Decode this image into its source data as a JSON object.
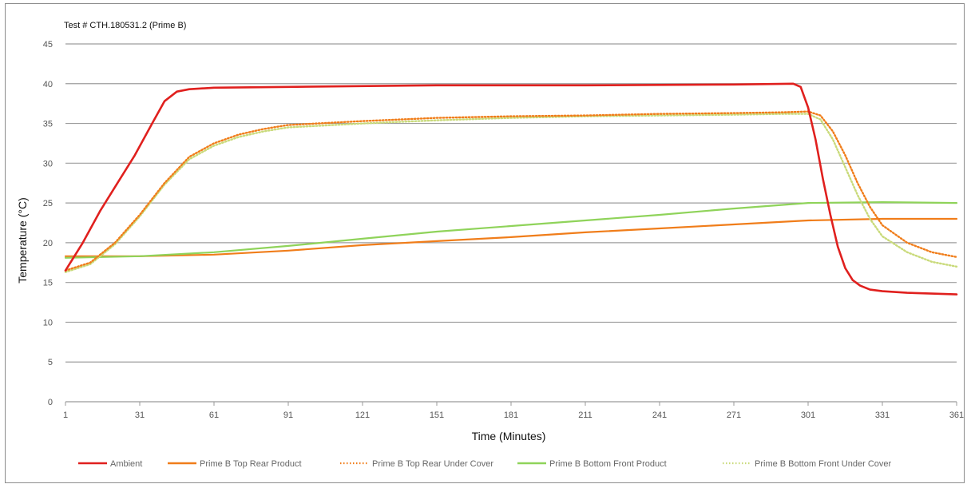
{
  "chart_data": {
    "type": "line",
    "title": "Test # CTH.180531.2 (Prime B)",
    "xlabel": "Time (Minutes)",
    "ylabel": "Temperature (°C)",
    "xlim": [
      1,
      361
    ],
    "ylim": [
      0,
      45
    ],
    "xticks": [
      1,
      31,
      61,
      91,
      121,
      151,
      181,
      211,
      241,
      271,
      301,
      331,
      361
    ],
    "yticks": [
      0,
      5,
      10,
      15,
      20,
      25,
      30,
      35,
      40,
      45
    ],
    "grid": "horizontal",
    "legend_position": "bottom",
    "series": [
      {
        "name": "Ambient",
        "color": "#e0201e",
        "style": "solid",
        "x": [
          1,
          8,
          15,
          22,
          29,
          36,
          41,
          46,
          51,
          61,
          91,
          151,
          211,
          271,
          295,
          298,
          301,
          304,
          307,
          310,
          313,
          316,
          319,
          322,
          326,
          331,
          341,
          351,
          361
        ],
        "y": [
          16.5,
          20,
          24,
          27.5,
          31,
          35,
          37.8,
          39,
          39.3,
          39.5,
          39.6,
          39.8,
          39.8,
          39.9,
          40,
          39.6,
          37,
          33,
          28,
          23.5,
          19.5,
          16.8,
          15.3,
          14.6,
          14.1,
          13.9,
          13.7,
          13.6,
          13.5
        ]
      },
      {
        "name": "Prime B Top Rear Product",
        "color": "#f07d1a",
        "style": "solid",
        "x": [
          1,
          31,
          61,
          91,
          121,
          151,
          181,
          211,
          241,
          271,
          301,
          331,
          361
        ],
        "y": [
          18.3,
          18.3,
          18.5,
          19,
          19.7,
          20.2,
          20.7,
          21.3,
          21.8,
          22.3,
          22.8,
          23,
          23
        ]
      },
      {
        "name": "Prime B Top Rear Under Cover",
        "color": "#f07d1a",
        "style": "dotted",
        "x": [
          1,
          11,
          21,
          31,
          41,
          51,
          61,
          71,
          81,
          91,
          121,
          151,
          181,
          211,
          241,
          271,
          291,
          301,
          306,
          311,
          316,
          321,
          326,
          331,
          341,
          351,
          361
        ],
        "y": [
          16.5,
          17.5,
          20,
          23.5,
          27.5,
          30.8,
          32.5,
          33.6,
          34.3,
          34.8,
          35.3,
          35.7,
          35.9,
          36,
          36.2,
          36.3,
          36.4,
          36.5,
          36,
          34,
          31,
          27.5,
          24.5,
          22.2,
          20,
          18.8,
          18.2
        ]
      },
      {
        "name": "Prime B Bottom Front Product",
        "color": "#8fd35a",
        "style": "solid",
        "x": [
          1,
          31,
          61,
          91,
          121,
          151,
          181,
          211,
          241,
          271,
          301,
          331,
          361
        ],
        "y": [
          18.1,
          18.3,
          18.8,
          19.6,
          20.5,
          21.4,
          22.1,
          22.8,
          23.5,
          24.3,
          25,
          25.1,
          25
        ]
      },
      {
        "name": "Prime B Bottom Front Under Cover",
        "color": "#c9da7a",
        "style": "dotted",
        "x": [
          1,
          11,
          21,
          31,
          41,
          51,
          61,
          71,
          81,
          91,
          121,
          151,
          181,
          211,
          241,
          271,
          291,
          301,
          306,
          311,
          316,
          321,
          326,
          331,
          341,
          351,
          361
        ],
        "y": [
          16.3,
          17.3,
          19.8,
          23.3,
          27.3,
          30.5,
          32.2,
          33.3,
          34,
          34.5,
          35,
          35.4,
          35.7,
          35.9,
          36,
          36.1,
          36.2,
          36.2,
          35.5,
          33,
          29.5,
          26,
          23,
          20.8,
          18.8,
          17.6,
          17
        ]
      }
    ]
  }
}
